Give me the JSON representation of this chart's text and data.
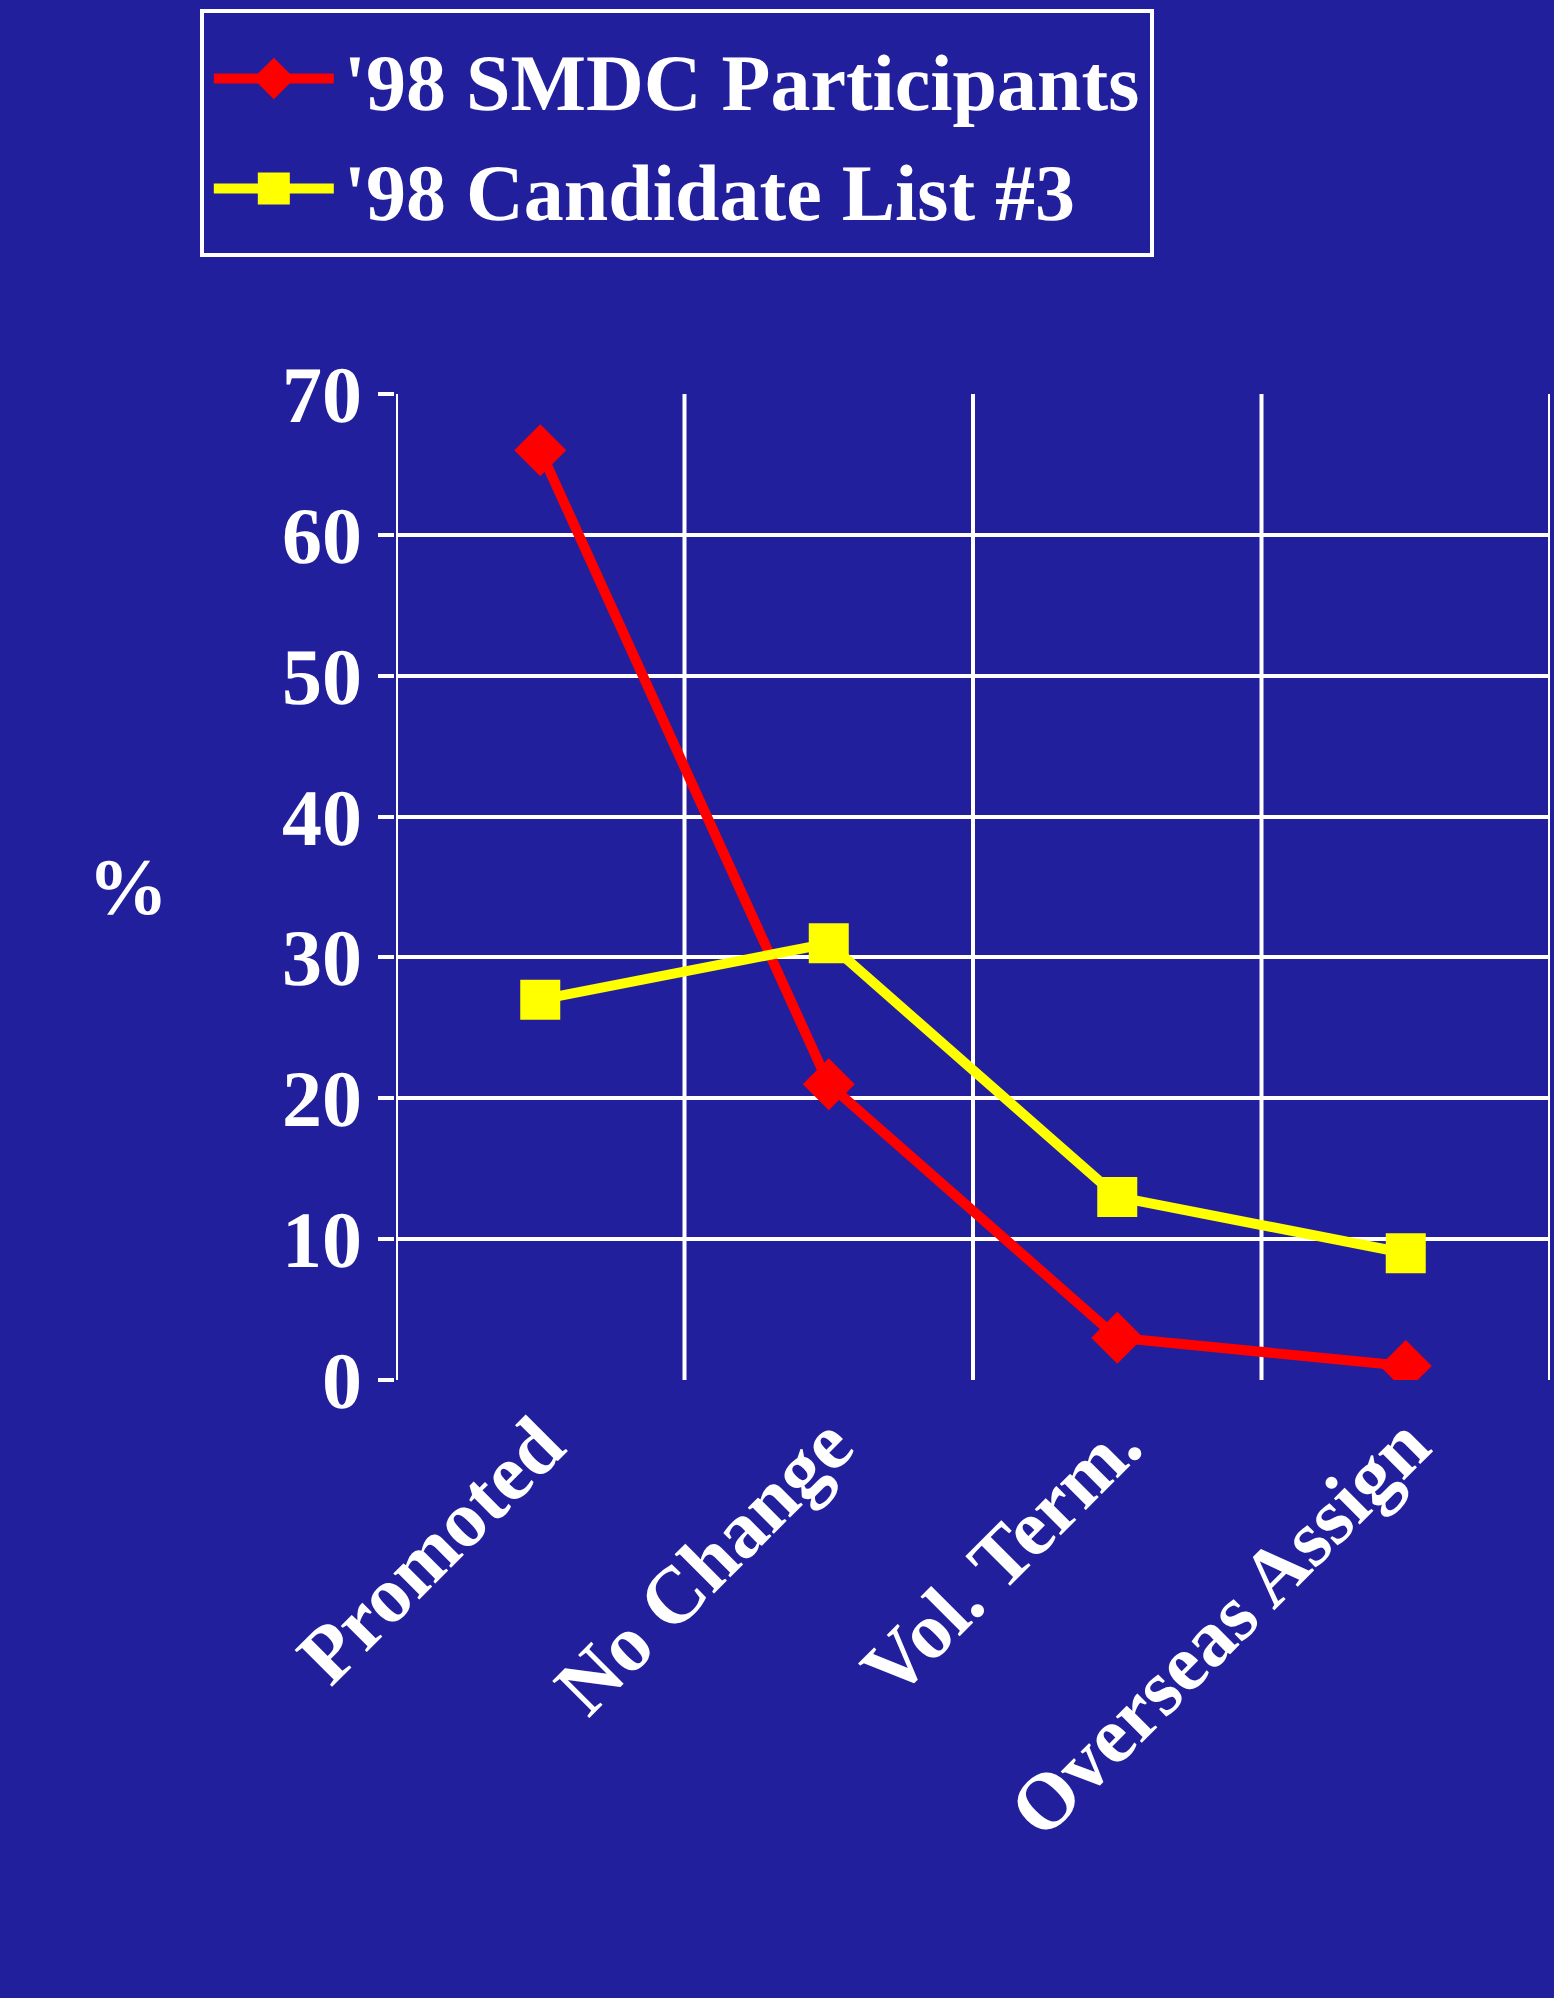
{
  "chart_data": {
    "type": "line",
    "ylabel": "%",
    "categories": [
      "Promoted",
      "No Change",
      "Vol. Term.",
      "Overseas Assign"
    ],
    "series": [
      {
        "name": "'98 SMDC Participants",
        "color": "#ff0000",
        "marker": "diamond",
        "values": [
          66,
          21,
          3,
          1
        ]
      },
      {
        "name": "'98 Candidate List #3",
        "color": "#ffff00",
        "marker": "square",
        "values": [
          27,
          31,
          13,
          9
        ]
      }
    ],
    "ylim": [
      0,
      70
    ],
    "yticks": [
      0,
      10,
      20,
      30,
      40,
      50,
      60,
      70
    ],
    "grid": true,
    "legend": "top",
    "line_style": "solid"
  }
}
